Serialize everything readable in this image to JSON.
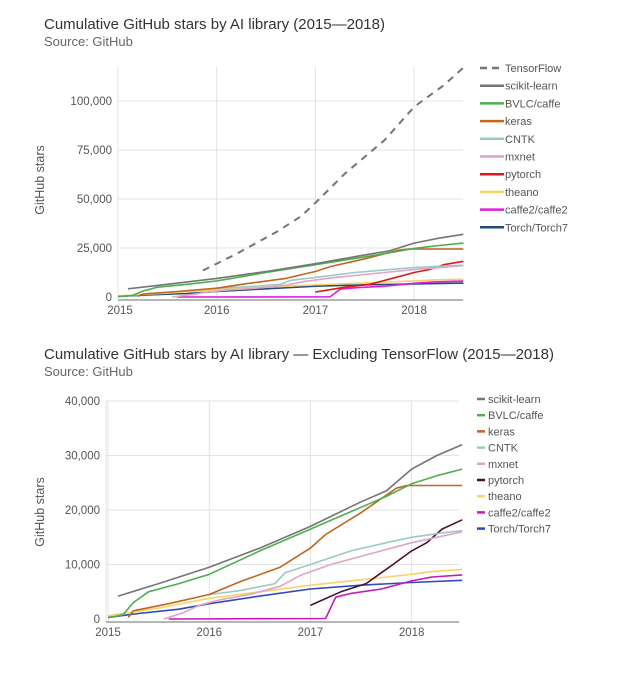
{
  "chart_data": [
    {
      "type": "line",
      "title": "Cumulative GitHub stars by AI library (2015—2018)",
      "subtitle": "Source: GitHub",
      "xlabel": "",
      "ylabel": "GitHub stars",
      "xlim": [
        2015.0,
        2018.5
      ],
      "ylim": [
        0,
        118000
      ],
      "xticks": [
        "2015",
        "2016",
        "2017",
        "2018"
      ],
      "yticks": [
        {
          "value": 0,
          "label": "0"
        },
        {
          "value": 25000,
          "label": "25,000"
        },
        {
          "value": 50000,
          "label": "50,000"
        },
        {
          "value": 75000,
          "label": "75,000"
        },
        {
          "value": 100000,
          "label": "100,000"
        }
      ],
      "grid": true,
      "legend_position": "right",
      "series": [
        {
          "name": "TensorFlow",
          "color": "#757575",
          "dashed": true,
          "points": [
            [
              2015.86,
              13500
            ],
            [
              2016.2,
              22000
            ],
            [
              2016.6,
              33000
            ],
            [
              2016.85,
              41000
            ],
            [
              2017.0,
              48000
            ],
            [
              2017.3,
              63000
            ],
            [
              2017.7,
              80000
            ],
            [
              2018.0,
              97000
            ],
            [
              2018.3,
              108000
            ],
            [
              2018.5,
              117000
            ]
          ]
        },
        {
          "name": "scikit-learn",
          "color": "#757575",
          "dashed": false,
          "points": [
            [
              2015.1,
              4200
            ],
            [
              2015.5,
              6500
            ],
            [
              2016.0,
              9500
            ],
            [
              2016.5,
              13000
            ],
            [
              2017.0,
              17000
            ],
            [
              2017.5,
              21500
            ],
            [
              2017.75,
              23500
            ],
            [
              2018.0,
              27500
            ],
            [
              2018.25,
              30000
            ],
            [
              2018.5,
              32000
            ]
          ]
        },
        {
          "name": "BVLC/caffe",
          "color": "#4caf50",
          "dashed": false,
          "points": [
            [
              2015.0,
              200
            ],
            [
              2015.15,
              800
            ],
            [
              2015.25,
              3000
            ],
            [
              2015.4,
              5000
            ],
            [
              2015.7,
              6500
            ],
            [
              2016.0,
              8200
            ],
            [
              2016.5,
              12500
            ],
            [
              2017.0,
              16500
            ],
            [
              2017.5,
              20500
            ],
            [
              2017.75,
              22500
            ],
            [
              2018.0,
              24800
            ],
            [
              2018.25,
              26300
            ],
            [
              2018.5,
              27500
            ]
          ]
        },
        {
          "name": "keras",
          "color": "#c0661e",
          "dashed": false,
          "points": [
            [
              2015.2,
              300
            ],
            [
              2015.25,
              1500
            ],
            [
              2015.6,
              2800
            ],
            [
              2016.0,
              4500
            ],
            [
              2016.3,
              6800
            ],
            [
              2016.7,
              9500
            ],
            [
              2017.0,
              13000
            ],
            [
              2017.15,
              15500
            ],
            [
              2017.5,
              19500
            ],
            [
              2017.85,
              24000
            ],
            [
              2017.95,
              24500
            ],
            [
              2018.5,
              24500
            ]
          ]
        },
        {
          "name": "CNTK",
          "color": "#9cc9c6",
          "dashed": false,
          "points": [
            [
              2016.0,
              4500
            ],
            [
              2016.3,
              5200
            ],
            [
              2016.65,
              6500
            ],
            [
              2016.75,
              8500
            ],
            [
              2017.0,
              10000
            ],
            [
              2017.4,
              12500
            ],
            [
              2017.75,
              14000
            ],
            [
              2018.0,
              15000
            ],
            [
              2018.3,
              15800
            ],
            [
              2018.5,
              16200
            ]
          ]
        },
        {
          "name": "mxnet",
          "color": "#e0a4c8",
          "dashed": false,
          "points": [
            [
              2015.55,
              0
            ],
            [
              2015.75,
              1200
            ],
            [
              2015.9,
              2500
            ],
            [
              2016.1,
              3500
            ],
            [
              2016.4,
              4500
            ],
            [
              2016.7,
              6000
            ],
            [
              2016.9,
              8000
            ],
            [
              2017.2,
              10000
            ],
            [
              2017.6,
              12000
            ],
            [
              2018.0,
              14000
            ],
            [
              2018.3,
              15200
            ],
            [
              2018.5,
              16000
            ]
          ]
        },
        {
          "name": "pytorch",
          "color": "#d81b1b",
          "dashed": false,
          "color2": "#4a1030",
          "points": [
            [
              2017.0,
              2500
            ],
            [
              2017.3,
              5000
            ],
            [
              2017.55,
              6500
            ],
            [
              2017.8,
              9800
            ],
            [
              2018.0,
              12500
            ],
            [
              2018.15,
              14000
            ],
            [
              2018.3,
              16500
            ],
            [
              2018.5,
              18200
            ]
          ]
        },
        {
          "name": "theano",
          "color": "#f6d36b",
          "dashed": false,
          "points": [
            [
              2015.0,
              600
            ],
            [
              2015.5,
              2000
            ],
            [
              2016.0,
              3800
            ],
            [
              2016.5,
              5000
            ],
            [
              2017.0,
              6200
            ],
            [
              2017.5,
              7200
            ],
            [
              2018.0,
              8200
            ],
            [
              2018.2,
              8700
            ],
            [
              2018.5,
              9100
            ]
          ]
        },
        {
          "name": "caffe2/caffe2",
          "color": "#e01ae0",
          "dashed": false,
          "color2": "#c21bb8",
          "points": [
            [
              2015.6,
              0
            ],
            [
              2017.15,
              100
            ],
            [
              2017.25,
              4000
            ],
            [
              2017.4,
              4700
            ],
            [
              2017.7,
              5500
            ],
            [
              2018.0,
              7000
            ],
            [
              2018.2,
              7700
            ],
            [
              2018.5,
              8100
            ]
          ]
        },
        {
          "name": "Torch/Torch7",
          "color": "#1e4e79",
          "dashed": false,
          "color2": "#2e4bbd",
          "points": [
            [
              2015.0,
              300
            ],
            [
              2015.3,
              1000
            ],
            [
              2015.7,
              1800
            ],
            [
              2016.0,
              2800
            ],
            [
              2016.5,
              4200
            ],
            [
              2017.0,
              5500
            ],
            [
              2017.5,
              6200
            ],
            [
              2018.0,
              6700
            ],
            [
              2018.5,
              7100
            ]
          ]
        }
      ]
    },
    {
      "type": "line",
      "title": "Cumulative GitHub stars by AI library — Excluding TensorFlow (2015—2018)",
      "subtitle": "Source: GitHub",
      "xlabel": "",
      "ylabel": "GitHub stars",
      "xlim": [
        2014.98,
        2018.5
      ],
      "ylim": [
        0,
        40000
      ],
      "xticks": [
        "2015",
        "2016",
        "2017",
        "2018"
      ],
      "yticks": [
        {
          "value": 0,
          "label": "0"
        },
        {
          "value": 10000,
          "label": "10,000"
        },
        {
          "value": 20000,
          "label": "20,000"
        },
        {
          "value": 30000,
          "label": "30,000"
        },
        {
          "value": 40000,
          "label": "40,000"
        }
      ],
      "grid": true,
      "legend_position": "right",
      "series_ref": "same data as chart 1 excluding TensorFlow",
      "legend": [
        "scikit-learn",
        "BVLC/caffe",
        "keras",
        "CNTK",
        "mxnet",
        "pytorch",
        "theano",
        "caffe2/caffe2",
        "Torch/Torch7"
      ]
    }
  ]
}
